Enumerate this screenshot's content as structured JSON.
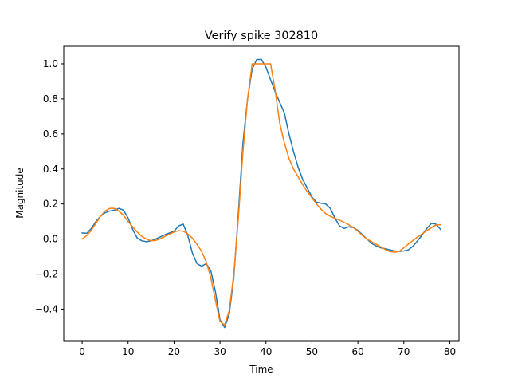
{
  "chart_data": {
    "type": "line",
    "title": "Verify spike 302810",
    "xlabel": "Time",
    "ylabel": "Magnitude",
    "xlim": [
      -4,
      82
    ],
    "ylim": [
      -0.58,
      1.1
    ],
    "xticks": [
      0,
      10,
      20,
      30,
      40,
      50,
      60,
      70,
      80
    ],
    "yticks": [
      -0.4,
      -0.2,
      0.0,
      0.2,
      0.4,
      0.6,
      0.8,
      1.0
    ],
    "xtick_labels": [
      "0",
      "10",
      "20",
      "30",
      "40",
      "50",
      "60",
      "70",
      "80"
    ],
    "ytick_labels": [
      "−0.4",
      "−0.2",
      "0.0",
      "0.2",
      "0.4",
      "0.6",
      "0.8",
      "1.0"
    ],
    "grid": false,
    "series": [
      {
        "color": "#1f77b4",
        "x": [
          0,
          1,
          2,
          3,
          4,
          5,
          6,
          7,
          8,
          9,
          10,
          11,
          12,
          13,
          14,
          15,
          16,
          17,
          18,
          19,
          20,
          21,
          22,
          23,
          24,
          25,
          26,
          27,
          28,
          29,
          30,
          31,
          32,
          33,
          34,
          35,
          36,
          37,
          38,
          39,
          40,
          41,
          42,
          43,
          44,
          45,
          46,
          47,
          48,
          49,
          50,
          51,
          52,
          53,
          54,
          55,
          56,
          57,
          58,
          59,
          60,
          61,
          62,
          63,
          64,
          65,
          66,
          67,
          68,
          69,
          70,
          71,
          72,
          73,
          74,
          75,
          76,
          77,
          78
        ],
        "y": [
          0.035,
          0.033,
          0.06,
          0.1,
          0.13,
          0.15,
          0.16,
          0.165,
          0.175,
          0.165,
          0.12,
          0.055,
          0.005,
          -0.01,
          -0.015,
          -0.01,
          0.0,
          0.012,
          0.025,
          0.035,
          0.045,
          0.075,
          0.085,
          0.02,
          -0.08,
          -0.14,
          -0.155,
          -0.14,
          -0.18,
          -0.3,
          -0.46,
          -0.505,
          -0.43,
          -0.22,
          0.15,
          0.55,
          0.8,
          0.97,
          1.025,
          1.025,
          0.98,
          0.91,
          0.84,
          0.78,
          0.72,
          0.6,
          0.5,
          0.41,
          0.34,
          0.29,
          0.24,
          0.21,
          0.205,
          0.2,
          0.175,
          0.12,
          0.075,
          0.06,
          0.07,
          0.065,
          0.05,
          0.025,
          0.0,
          -0.025,
          -0.04,
          -0.05,
          -0.055,
          -0.062,
          -0.068,
          -0.07,
          -0.068,
          -0.062,
          -0.04,
          -0.01,
          0.025,
          0.06,
          0.09,
          0.085,
          0.055
        ]
      },
      {
        "color": "#ff7f0e",
        "x": [
          0,
          1,
          2,
          3,
          4,
          5,
          6,
          7,
          8,
          9,
          10,
          11,
          12,
          13,
          14,
          15,
          16,
          17,
          18,
          19,
          20,
          21,
          22,
          23,
          24,
          25,
          26,
          27,
          28,
          29,
          30,
          31,
          32,
          33,
          34,
          35,
          36,
          37,
          38,
          39,
          40,
          41,
          42,
          43,
          44,
          45,
          46,
          47,
          48,
          49,
          50,
          51,
          52,
          53,
          54,
          55,
          56,
          57,
          58,
          59,
          60,
          61,
          62,
          63,
          64,
          65,
          66,
          67,
          68,
          69,
          70,
          71,
          72,
          73,
          74,
          75,
          76,
          77,
          78
        ],
        "y": [
          0.0,
          0.02,
          0.05,
          0.09,
          0.13,
          0.16,
          0.175,
          0.175,
          0.16,
          0.135,
          0.1,
          0.07,
          0.04,
          0.015,
          0.0,
          -0.01,
          -0.008,
          0.002,
          0.015,
          0.028,
          0.04,
          0.048,
          0.045,
          0.03,
          0.005,
          -0.03,
          -0.07,
          -0.13,
          -0.22,
          -0.35,
          -0.47,
          -0.49,
          -0.41,
          -0.2,
          0.12,
          0.5,
          0.8,
          1.0,
          1.0,
          1.0,
          1.0,
          1.0,
          0.85,
          0.66,
          0.55,
          0.46,
          0.4,
          0.355,
          0.31,
          0.27,
          0.235,
          0.2,
          0.17,
          0.145,
          0.13,
          0.118,
          0.108,
          0.095,
          0.082,
          0.065,
          0.045,
          0.02,
          0.0,
          -0.015,
          -0.03,
          -0.045,
          -0.06,
          -0.072,
          -0.075,
          -0.07,
          -0.05,
          -0.028,
          -0.008,
          0.012,
          0.03,
          0.048,
          0.065,
          0.08,
          0.082
        ]
      }
    ]
  }
}
